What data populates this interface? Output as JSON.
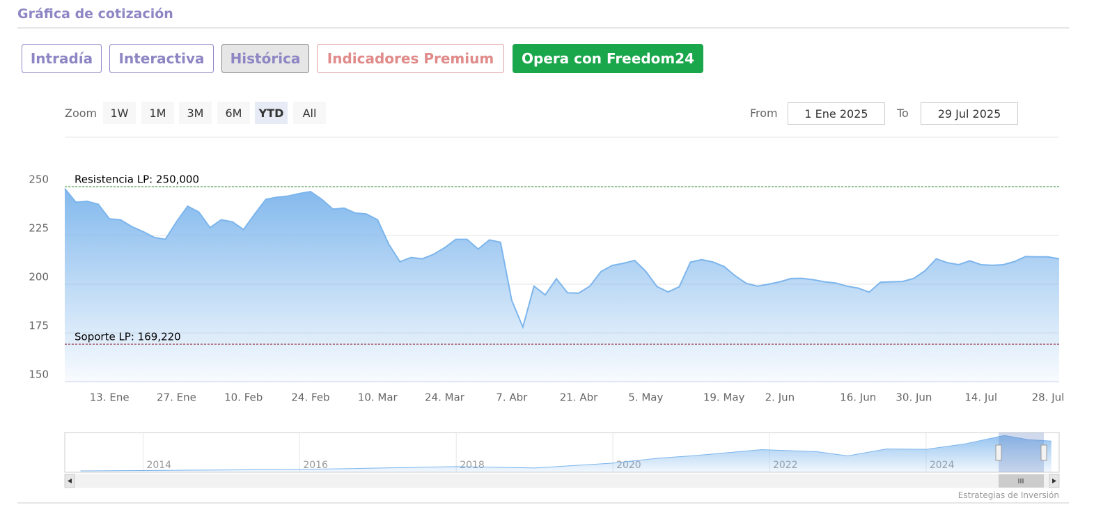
{
  "header": {
    "title": "Gráfica de cotización"
  },
  "tabs": [
    "Intradía",
    "Interactiva",
    "Histórica",
    "Indicadores Premium"
  ],
  "cta": "Opera con Freedom24",
  "range_selector": {
    "label": "Zoom",
    "buttons": [
      "1W",
      "1M",
      "3M",
      "6M",
      "YTD",
      "All"
    ],
    "selected": "YTD",
    "from_label": "From",
    "from": "1 Ene 2025",
    "to_label": "To",
    "to": "29 Jul 2025"
  },
  "chart_data": {
    "type": "area",
    "color": "#7cb5ec",
    "categories": [
      null,
      null,
      null,
      null,
      "13. Ene",
      null,
      null,
      null,
      null,
      null,
      "27. Ene",
      null,
      null,
      null,
      null,
      null,
      "10. Feb",
      null,
      null,
      null,
      null,
      null,
      "24. Feb",
      null,
      null,
      null,
      null,
      null,
      "10. Mar",
      null,
      null,
      null,
      null,
      null,
      "24. Mar",
      null,
      null,
      null,
      null,
      null,
      "7. Abr",
      null,
      null,
      null,
      null,
      null,
      "21. Abr",
      null,
      null,
      null,
      null,
      null,
      "5. May",
      null,
      null,
      null,
      null,
      null,
      null,
      "19. May",
      null,
      null,
      null,
      null,
      "2. Jun",
      null,
      null,
      null,
      null,
      null,
      null,
      "16. Jun",
      null,
      null,
      null,
      null,
      "30. Jun",
      null,
      null,
      null,
      null,
      null,
      "14. Jul",
      null,
      null,
      null,
      null,
      null,
      "28. Jul",
      null
    ],
    "values": [
      249,
      242,
      242.5,
      241,
      233.5,
      233,
      229.5,
      227,
      224,
      223,
      232,
      240,
      237,
      229,
      233,
      232,
      228,
      236,
      243.5,
      244.6,
      245.2,
      246.5,
      247.5,
      243.5,
      238.5,
      239,
      236.5,
      236,
      233,
      220.5,
      211.5,
      213.7,
      213,
      215.3,
      218.7,
      223,
      223,
      218,
      222.7,
      221.5,
      191.8,
      178,
      199,
      194.5,
      202.8,
      195.6,
      195.4,
      199,
      206.5,
      209.6,
      210.7,
      212.2,
      206.6,
      198.8,
      196,
      198.7,
      211.3,
      212.6,
      211.4,
      209.1,
      204.3,
      200.4,
      199,
      200,
      201.2,
      202.9,
      203,
      202.3,
      201.2,
      200.6,
      199,
      198,
      195.9,
      201,
      201.2,
      201.4,
      203,
      206.9,
      213,
      211,
      210,
      212,
      210,
      209.7,
      210,
      211.6,
      214.2,
      214,
      214,
      213
    ],
    "ylim": [
      150,
      260
    ],
    "yticks": [
      150,
      175,
      200,
      225,
      250
    ],
    "grid": true,
    "plot_lines": [
      {
        "value": 250,
        "label": "Resistencia LP: 250,000",
        "color": "#2e8b2e"
      },
      {
        "value": 169.22,
        "label": "Soporte LP: 169,220",
        "color": "#8b1a2a"
      }
    ]
  },
  "navigator": {
    "x": [
      2013.2,
      2016,
      2018,
      2019,
      2020,
      2020.6,
      2021,
      2021.9,
      2022.6,
      2023,
      2023.5,
      2024,
      2024.5,
      2025,
      2025.3,
      2025.6
    ],
    "values": [
      9,
      18,
      37,
      28,
      60,
      93,
      107,
      148,
      135,
      107,
      153,
      150,
      186,
      241,
      214,
      204
    ],
    "xlim": [
      2013,
      2025.7
    ],
    "ylim": [
      0,
      260
    ],
    "xticks": [
      2014,
      2016,
      2018,
      2020,
      2022,
      2024
    ]
  },
  "credits": "Estrategias de Inversión"
}
